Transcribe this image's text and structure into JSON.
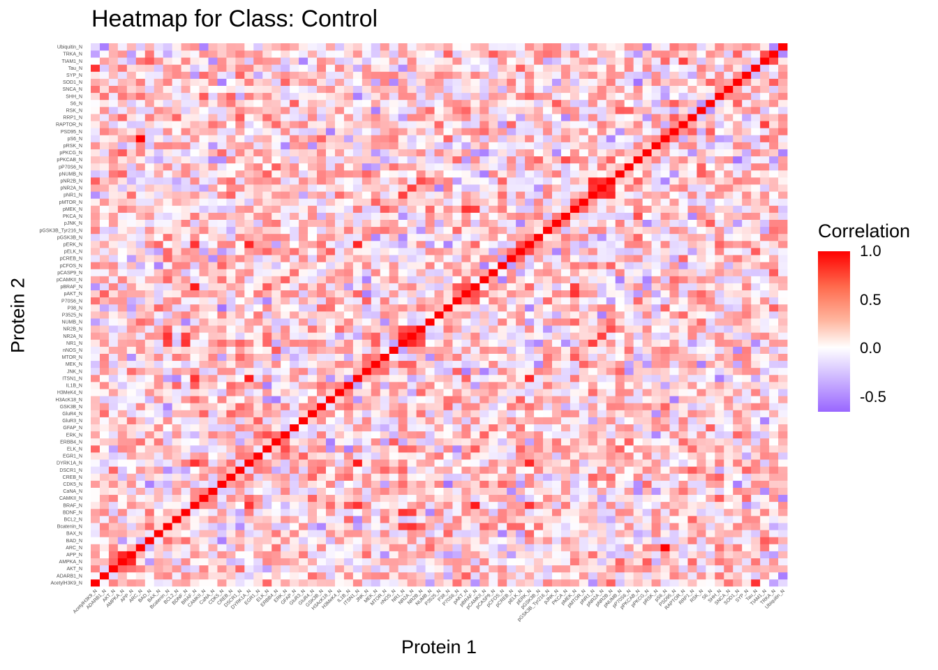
{
  "chart_data": {
    "type": "heatmap",
    "title": "Heatmap for Class: Control",
    "xlabel": "Protein 1",
    "ylabel": "Protein 2",
    "legend": {
      "title": "Correlation",
      "ticks": [
        1.0,
        0.5,
        0.0,
        -0.5
      ],
      "tick_labels": [
        "1.0",
        "0.5",
        "0.0",
        "-0.5"
      ],
      "range": [
        -0.65,
        1.0
      ],
      "colors": {
        "high": "#ff0000",
        "mid": "#ffffff",
        "low": "#9966ff"
      },
      "placement": "right"
    },
    "grid": false,
    "variables": [
      "AcetylH3K9_N",
      "ADARB1_N",
      "AKT_N",
      "AMPKA_N",
      "APP_N",
      "ARC_N",
      "BAD_N",
      "BAX_N",
      "Bcatenin_N",
      "BCL2_N",
      "BDNF_N",
      "BRAF_N",
      "CAMKII_N",
      "CaNA_N",
      "CDK5_N",
      "CREB_N",
      "DSCR1_N",
      "DYRK1A_N",
      "EGR1_N",
      "ELK_N",
      "ERBB4_N",
      "ERK_N",
      "GFAP_N",
      "GluR3_N",
      "GluR4_N",
      "GSK3B_N",
      "H3AcK18_N",
      "H3MeK4_N",
      "IL1B_N",
      "ITSN1_N",
      "JNK_N",
      "MEK_N",
      "MTOR_N",
      "nNOS_N",
      "NR1_N",
      "NR2A_N",
      "NR2B_N",
      "NUMB_N",
      "P3525_N",
      "P38_N",
      "P70S6_N",
      "pAKT_N",
      "pBRAF_N",
      "pCAMKII_N",
      "pCASP9_N",
      "pCFOS_N",
      "pCREB_N",
      "pELK_N",
      "pERK_N",
      "pGSK3B_N",
      "pGSK3B_Tyr216_N",
      "pJNK_N",
      "PKCA_N",
      "pMEK_N",
      "pMTOR_N",
      "pNR1_N",
      "pNR2A_N",
      "pNR2B_N",
      "pNUMB_N",
      "pP70S6_N",
      "pPKCAB_N",
      "pPKCG_N",
      "pRSK_N",
      "pS6_N",
      "PSD95_N",
      "RAPTOR_N",
      "RRP1_N",
      "RSK_N",
      "S6_N",
      "SHH_N",
      "SNCA_N",
      "SOD1_N",
      "SYP_N",
      "Tau_N",
      "TIAM1_N",
      "TRKA_N",
      "Ubiquitin_N"
    ],
    "strong_pairs": [
      [
        "AMPKA_N",
        "APP_N",
        0.85
      ],
      [
        "AMPKA_N",
        "AKT_N",
        0.6
      ],
      [
        "APP_N",
        "AKT_N",
        0.55
      ],
      [
        "ARC_N",
        "pS6_N",
        1.0
      ],
      [
        "AcetylH3K9_N",
        "Tau_N",
        0.8
      ],
      [
        "BRAF_N",
        "pBRAF_N",
        0.9
      ],
      [
        "BRAF_N",
        "ITSN1_N",
        0.8
      ],
      [
        "BRAF_N",
        "DYRK1A_N",
        0.8
      ],
      [
        "BRAF_N",
        "pERK_N",
        0.8
      ],
      [
        "DYRK1A_N",
        "ITSN1_N",
        0.9
      ],
      [
        "DYRK1A_N",
        "pERK_N",
        0.85
      ],
      [
        "ITSN1_N",
        "pERK_N",
        0.85
      ],
      [
        "ITSN1_N",
        "BRAF_N",
        0.8
      ],
      [
        "BDNF_N",
        "NR1_N",
        0.8
      ],
      [
        "BDNF_N",
        "NR2A_N",
        0.75
      ],
      [
        "Bcatenin_N",
        "NR1_N",
        0.75
      ],
      [
        "Bcatenin_N",
        "NR2A_N",
        0.8
      ],
      [
        "NR1_N",
        "NR2A_N",
        0.85
      ],
      [
        "NR1_N",
        "NR2B_N",
        0.7
      ],
      [
        "NR2A_N",
        "NR2B_N",
        0.75
      ],
      [
        "pNR1_N",
        "pNR2B_N",
        0.85
      ],
      [
        "pNR1_N",
        "pNR2A_N",
        0.8
      ],
      [
        "pNR2A_N",
        "pNR2B_N",
        0.8
      ],
      [
        "NR1_N",
        "pNR1_N",
        0.75
      ],
      [
        "NR2A_N",
        "pNR2A_N",
        0.75
      ],
      [
        "NR2B_N",
        "pNR2B_N",
        0.7
      ],
      [
        "pAKT_N",
        "pMEK_N",
        0.8
      ],
      [
        "pAKT_N",
        "pBRAF_N",
        0.7
      ],
      [
        "P70S6_N",
        "pBRAF_N",
        0.65
      ],
      [
        "pMEK_N",
        "pBRAF_N",
        0.75
      ],
      [
        "pELK_N",
        "pERK_N",
        0.7
      ],
      [
        "pCREB_N",
        "pELK_N",
        0.6
      ],
      [
        "PKCA_N",
        "pPKCAB_N",
        0.7
      ],
      [
        "RAPTOR_N",
        "TIAM1_N",
        0.75
      ],
      [
        "TIAM1_N",
        "TRKA_N",
        0.7
      ],
      [
        "pPKCAB_N",
        "SOD1_N",
        -0.6
      ],
      [
        "CDK5_N",
        "P38_N",
        -0.6
      ],
      [
        "SOD1_N",
        "CDK5_N",
        -0.55
      ],
      [
        "H3AcK18_N",
        "ITSN1_N",
        -0.45
      ],
      [
        "IL1B_N",
        "ITSN1_N",
        -0.4
      ],
      [
        "CaNA_N",
        "pPKCAB_N",
        -0.5
      ],
      [
        "ELK_N",
        "ERK_N",
        0.7
      ],
      [
        "ERBB4_N",
        "ERK_N",
        0.55
      ],
      [
        "CAMKII_N",
        "BRAF_N",
        0.45
      ],
      [
        "EGR1_N",
        "DYRK1A_N",
        0.5
      ],
      [
        "MEK_N",
        "JNK_N",
        0.55
      ],
      [
        "MTOR_N",
        "MEK_N",
        0.5
      ],
      [
        "GSK3B_N",
        "ERK_N",
        0.5
      ],
      [
        "pMTOR_N",
        "pMEK_N",
        0.6
      ],
      [
        "RSK_N",
        "pAKT_N",
        0.6
      ],
      [
        "PSD95_N",
        "pS6_N",
        0.55
      ],
      [
        "SNCA_N",
        "SHH_N",
        0.45
      ],
      [
        "SYP_N",
        "SOD1_N",
        0.45
      ],
      [
        "pCAMKII_N",
        "pAKT_N",
        0.55
      ],
      [
        "pGSK3B_N",
        "pERK_N",
        0.5
      ]
    ]
  }
}
